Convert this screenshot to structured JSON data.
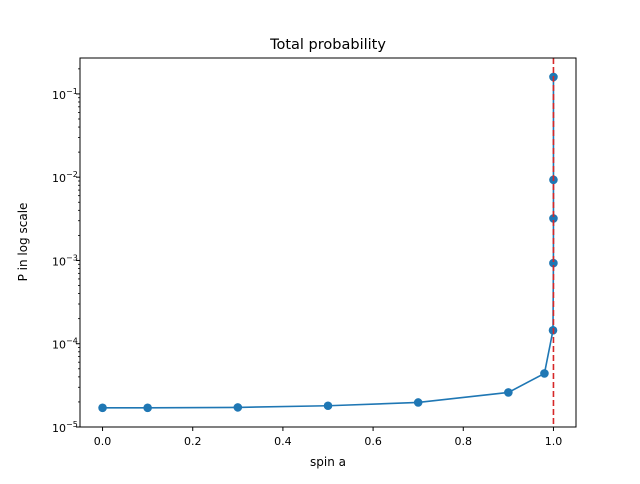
{
  "chart_data": {
    "type": "line",
    "title": "Total probability",
    "xlabel": "spin a",
    "ylabel": "P in log scale",
    "xlim": [
      -0.05,
      1.05
    ],
    "ylim": [
      1e-05,
      0.27
    ],
    "yscale": "log",
    "grid": false,
    "x_ticks": [
      {
        "value": 0.0,
        "label": "0.0"
      },
      {
        "value": 0.2,
        "label": "0.2"
      },
      {
        "value": 0.4,
        "label": "0.4"
      },
      {
        "value": 0.6,
        "label": "0.6"
      },
      {
        "value": 0.8,
        "label": "0.8"
      },
      {
        "value": 1.0,
        "label": "1.0"
      }
    ],
    "y_ticks": [
      {
        "value": 1e-05,
        "base": "10",
        "exp": "−5"
      },
      {
        "value": 0.0001,
        "base": "10",
        "exp": "−4"
      },
      {
        "value": 0.001,
        "base": "10",
        "exp": "−3"
      },
      {
        "value": 0.01,
        "base": "10",
        "exp": "−2"
      },
      {
        "value": 0.1,
        "base": "10",
        "exp": "−1"
      }
    ],
    "series": [
      {
        "color": "#1f77b4",
        "marker": "circle",
        "x": [
          0.0,
          0.1,
          0.3,
          0.5,
          0.7,
          0.9,
          0.98,
          0.999,
          0.9999,
          0.99999,
          0.999999,
          0.9999999
        ],
        "y": [
          1.7e-05,
          1.7e-05,
          1.72e-05,
          1.8e-05,
          1.97e-05,
          2.6e-05,
          4.4e-05,
          0.000145,
          0.00093,
          0.0032,
          0.0093,
          0.16
        ]
      }
    ],
    "reference_line": {
      "x": 1.0,
      "color": "#d62728",
      "style": "dashed"
    }
  }
}
